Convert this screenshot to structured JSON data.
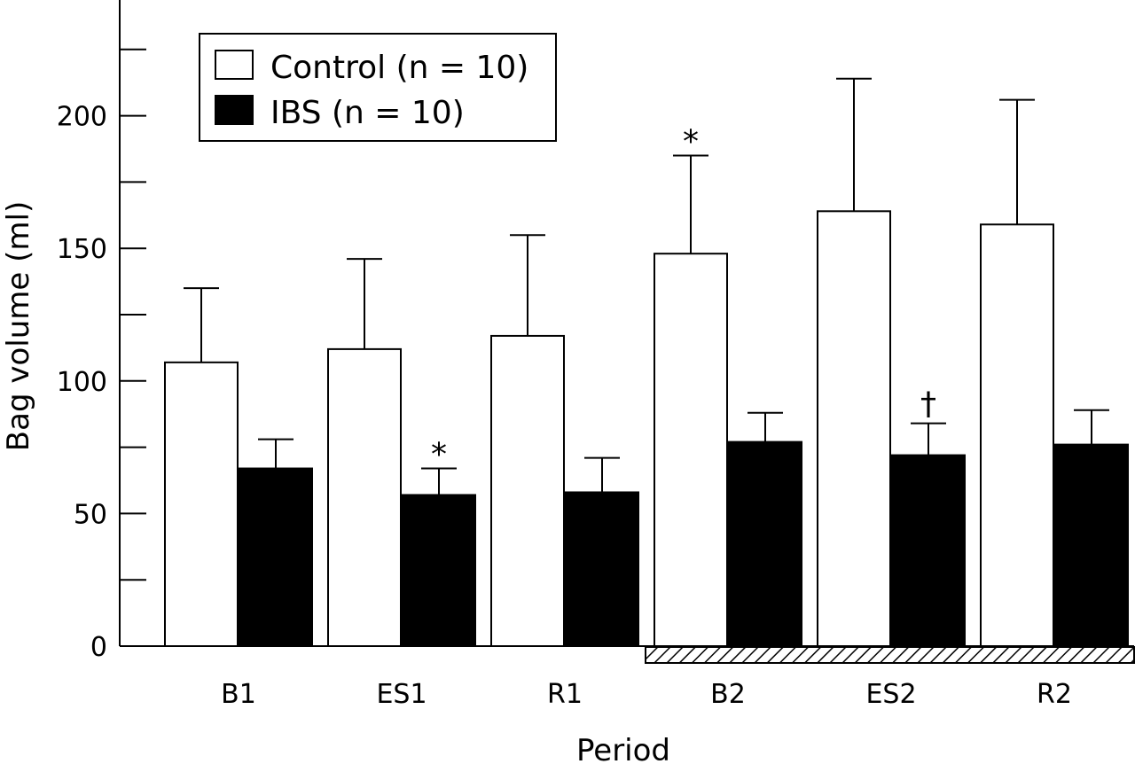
{
  "chart_data": {
    "type": "bar",
    "categories": [
      "B1",
      "ES1",
      "R1",
      "B2",
      "ES2",
      "R2"
    ],
    "series": [
      {
        "name": "Control (n = 10)",
        "values": [
          107,
          112,
          117,
          148,
          164,
          159
        ],
        "error": [
          28,
          34,
          38,
          37,
          50,
          47
        ],
        "fill": "#ffffff"
      },
      {
        "name": "IBS (n = 10)",
        "values": [
          67,
          57,
          58,
          77,
          72,
          76
        ],
        "error": [
          11,
          10,
          13,
          11,
          12,
          13
        ],
        "fill": "#000000"
      }
    ],
    "markers": [
      {
        "series": 1,
        "category": 1,
        "symbol": "*"
      },
      {
        "series": 0,
        "category": 3,
        "symbol": "*"
      },
      {
        "series": 1,
        "category": 4,
        "symbol": "†"
      }
    ],
    "xlabel": "Period",
    "ylabel": "Bag volume (ml)",
    "ylim": [
      0,
      243
    ],
    "yticks": [
      0,
      50,
      100,
      150,
      200
    ],
    "yminor_step": 25,
    "legend_position": "top-left",
    "highlighted_periods": [
      "B2",
      "ES2",
      "R2"
    ],
    "grid": false
  }
}
